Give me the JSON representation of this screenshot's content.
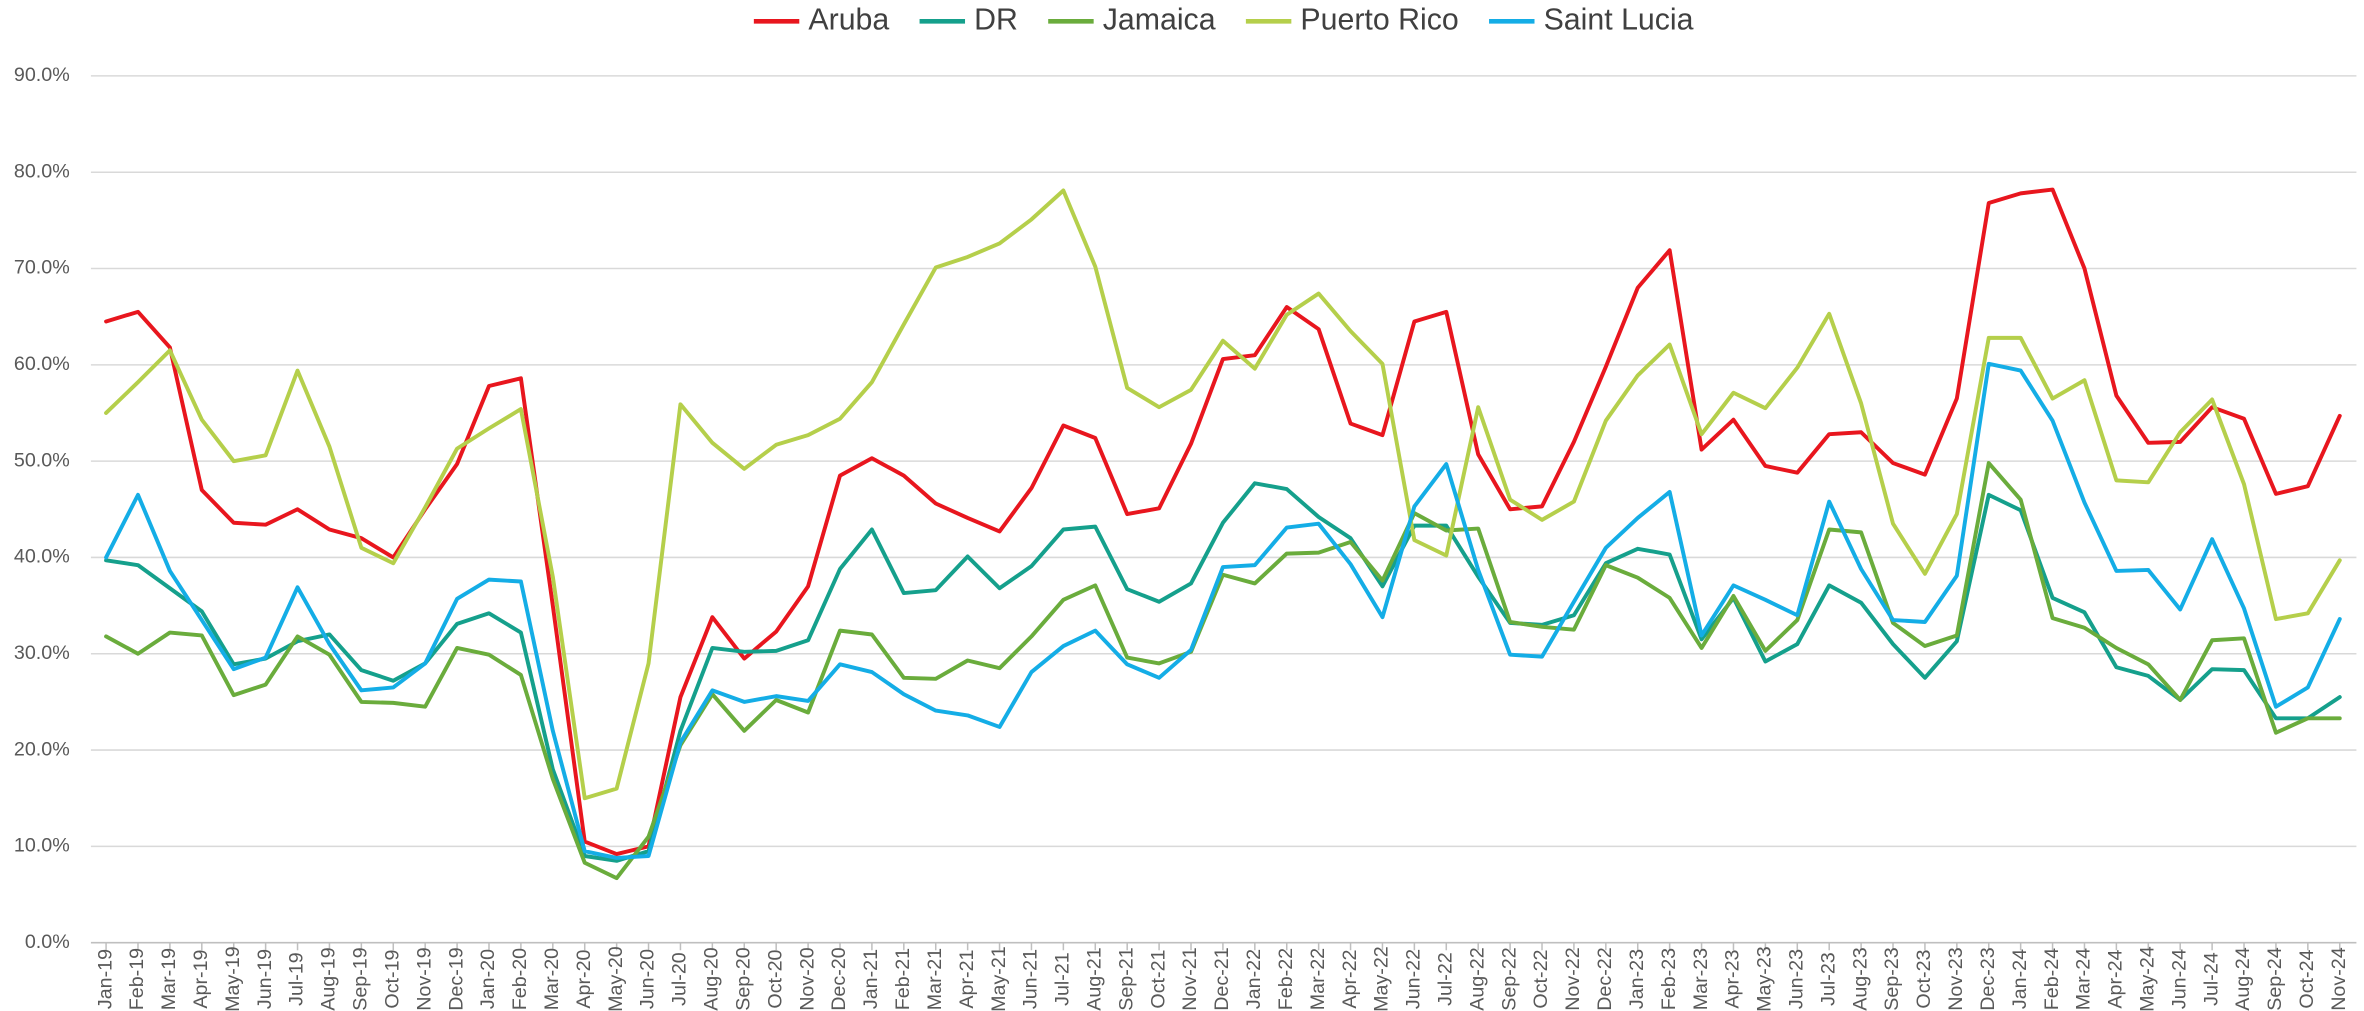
{
  "chart_data": {
    "type": "line",
    "categories": [
      "Jan-19",
      "Feb-19",
      "Mar-19",
      "Apr-19",
      "May-19",
      "Jun-19",
      "Jul-19",
      "Aug-19",
      "Sep-19",
      "Oct-19",
      "Nov-19",
      "Dec-19",
      "Jan-20",
      "Feb-20",
      "Mar-20",
      "Apr-20",
      "May-20",
      "Jun-20",
      "Jul-20",
      "Aug-20",
      "Sep-20",
      "Oct-20",
      "Nov-20",
      "Dec-20",
      "Jan-21",
      "Feb-21",
      "Mar-21",
      "Apr-21",
      "May-21",
      "Jun-21",
      "Jul-21",
      "Aug-21",
      "Sep-21",
      "Oct-21",
      "Nov-21",
      "Dec-21",
      "Jan-22",
      "Feb-22",
      "Mar-22",
      "Apr-22",
      "May-22",
      "Jun-22",
      "Jul-22",
      "Aug-22",
      "Sep-22",
      "Oct-22",
      "Nov-22",
      "Dec-22",
      "Jan-23",
      "Feb-23",
      "Mar-23",
      "Apr-23",
      "May-23",
      "Jun-23",
      "Jul-23",
      "Aug-23",
      "Sep-23",
      "Oct-23",
      "Nov-23",
      "Dec-23",
      "Jan-24",
      "Feb-24",
      "Mar-24",
      "Apr-24",
      "May-24",
      "Jun-24",
      "Jul-24",
      "Aug-24",
      "Sep-24",
      "Oct-24",
      "Nov-24"
    ],
    "series": [
      {
        "name": "Aruba",
        "color": "#e8161e",
        "values": [
          64.5,
          65.5,
          61.8,
          47,
          43.6,
          43.4,
          45,
          42.9,
          42,
          40,
          45,
          49.7,
          57.8,
          58.6,
          35,
          10.5,
          9.2,
          10,
          25.5,
          33.8,
          29.5,
          32.3,
          37,
          48.5,
          50.3,
          48.5,
          45.6,
          44.1,
          42.7,
          47.2,
          53.7,
          52.4,
          44.5,
          45.1,
          51.8,
          60.6,
          61,
          66,
          63.7,
          53.9,
          52.7,
          64.5,
          65.5,
          50.7,
          45,
          45.3,
          52,
          59.8,
          68,
          71.9,
          51.2,
          54.3,
          49.5,
          48.8,
          52.8,
          53,
          49.8,
          48.6,
          56.5,
          76.8,
          77.8,
          78.2,
          70,
          56.8,
          51.9,
          52,
          55.6,
          54.4,
          46.6,
          47.4,
          54.7
        ]
      },
      {
        "name": "DR",
        "color": "#15a08c",
        "values": [
          39.7,
          39.2,
          36.8,
          34.4,
          28.9,
          29.5,
          31.3,
          32,
          28.3,
          27.2,
          29,
          33.1,
          34.2,
          32.2,
          18,
          9,
          8.5,
          9.5,
          22,
          30.6,
          30.2,
          30.3,
          31.4,
          38.8,
          42.9,
          36.3,
          36.6,
          40.1,
          36.8,
          39.1,
          42.9,
          43.2,
          36.7,
          35.4,
          37.3,
          43.6,
          47.7,
          47.1,
          44.2,
          42,
          37,
          43.3,
          43.3,
          38,
          33.2,
          33,
          34,
          39.4,
          40.9,
          40.3,
          31.5,
          35.8,
          29.2,
          31,
          37.1,
          35.3,
          31,
          27.5,
          31.3,
          46.5,
          44.9,
          35.8,
          34.3,
          28.6,
          27.7,
          25.2,
          28.4,
          28.3,
          23.3,
          23.3,
          25.5
        ]
      },
      {
        "name": "Jamaica",
        "color": "#6aac3c",
        "values": [
          31.8,
          30,
          32.2,
          31.9,
          25.7,
          26.8,
          31.8,
          29.9,
          25,
          24.9,
          24.5,
          30.6,
          29.9,
          27.8,
          17,
          8.3,
          6.7,
          11,
          20.5,
          25.8,
          22,
          25.2,
          23.9,
          32.4,
          32,
          27.5,
          27.4,
          29.3,
          28.5,
          31.8,
          35.6,
          37.1,
          29.6,
          29,
          30.2,
          38.2,
          37.3,
          40.4,
          40.5,
          41.6,
          37.6,
          44.6,
          42.8,
          43,
          33.3,
          32.8,
          32.5,
          39.2,
          37.9,
          35.8,
          30.6,
          36,
          30.3,
          33.5,
          42.9,
          42.6,
          33.2,
          30.8,
          31.9,
          49.8,
          46,
          33.7,
          32.7,
          30.6,
          28.9,
          25.2,
          31.4,
          31.6,
          21.8,
          23.3,
          23.3
        ]
      },
      {
        "name": "Puerto Rico",
        "color": "#b5cf4b",
        "values": [
          55,
          58.2,
          61.5,
          54.3,
          50,
          50.6,
          59.4,
          51.5,
          41,
          39.4,
          45.2,
          51.3,
          53.4,
          55.4,
          38,
          15,
          16,
          29,
          55.9,
          51.9,
          49.2,
          51.7,
          52.7,
          54.4,
          58.2,
          64.2,
          70.1,
          71.2,
          72.6,
          75.1,
          78.1,
          70.2,
          57.6,
          55.6,
          57.4,
          62.5,
          59.6,
          65.2,
          67.4,
          63.5,
          60.1,
          41.8,
          40.2,
          55.6,
          46,
          43.9,
          45.8,
          54.2,
          58.9,
          62.1,
          52.8,
          57.1,
          55.5,
          59.7,
          65.3,
          56,
          43.5,
          38.3,
          44.5,
          62.8,
          62.8,
          56.5,
          58.4,
          48,
          47.8,
          53,
          56.4,
          47.6,
          33.6,
          34.2,
          39.7
        ]
      },
      {
        "name": "Saint Lucia",
        "color": "#14ade6",
        "values": [
          40,
          46.5,
          38.6,
          33.5,
          28.4,
          29.6,
          36.9,
          31,
          26.2,
          26.5,
          29,
          35.7,
          37.7,
          37.5,
          22,
          9.5,
          8.8,
          9,
          20.8,
          26.2,
          25,
          25.6,
          25.1,
          28.9,
          28.1,
          25.8,
          24.1,
          23.6,
          22.4,
          28.1,
          30.8,
          32.4,
          28.9,
          27.5,
          30.4,
          39,
          39.2,
          43.1,
          43.5,
          39.3,
          33.8,
          45.3,
          49.7,
          38.7,
          29.9,
          29.7,
          35.4,
          41,
          44.1,
          46.8,
          31.9,
          37.1,
          35.6,
          34,
          45.8,
          38.8,
          33.5,
          33.3,
          38.1,
          60.1,
          59.4,
          54.2,
          45.7,
          38.6,
          38.7,
          34.6,
          41.9,
          34.7,
          24.5,
          26.5,
          33.6
        ]
      }
    ],
    "ylim": [
      0,
      90
    ],
    "yticks": [
      {
        "value": 0,
        "label": "0.0%"
      },
      {
        "value": 10,
        "label": "10.0%"
      },
      {
        "value": 20,
        "label": "20.0%"
      },
      {
        "value": 30,
        "label": "30.0%"
      },
      {
        "value": 40,
        "label": "40.0%"
      },
      {
        "value": 50,
        "label": "50.0%"
      },
      {
        "value": 60,
        "label": "60.0%"
      },
      {
        "value": 70,
        "label": "70.0%"
      },
      {
        "value": 80,
        "label": "80.0%"
      },
      {
        "value": 90,
        "label": "90.0%"
      }
    ],
    "grid": true,
    "legend": "top"
  }
}
